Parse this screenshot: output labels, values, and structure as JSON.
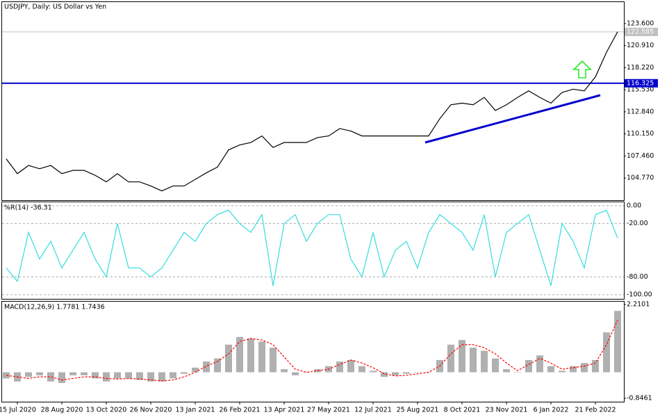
{
  "chart_data": [
    {
      "type": "price",
      "title": "USDJPY, Daily:  US Dollar vs Yen",
      "categories": [
        null,
        "15 Jul 2020",
        null,
        null,
        null,
        "28 Aug 2020",
        null,
        null,
        null,
        "13 Oct 2020",
        null,
        null,
        null,
        "26 Nov 2020",
        null,
        null,
        null,
        "13 Jan 2021",
        null,
        null,
        null,
        "26 Feb 2021",
        null,
        null,
        null,
        "13 Apr 2021",
        null,
        null,
        null,
        "27 May 2021",
        null,
        null,
        null,
        "12 Jul 2021",
        null,
        null,
        null,
        "25 Aug 2021",
        null,
        null,
        null,
        "8 Oct 2021",
        null,
        null,
        null,
        "23 Nov 2021",
        null,
        null,
        null,
        "6 Jan 2022",
        null,
        null,
        null,
        "21 Feb 2022",
        null,
        null
      ],
      "values": [
        107.1,
        105.3,
        106.3,
        105.9,
        106.3,
        105.3,
        105.7,
        105.7,
        105.1,
        104.3,
        105.3,
        104.3,
        104.3,
        103.8,
        103.2,
        103.8,
        103.8,
        104.6,
        105.4,
        106.1,
        108.2,
        108.8,
        109.1,
        109.9,
        108.5,
        109.1,
        109.1,
        109.1,
        109.7,
        109.9,
        110.8,
        110.5,
        109.9,
        109.9,
        109.9,
        109.9,
        109.9,
        109.9,
        109.9,
        112.0,
        113.7,
        113.9,
        113.7,
        114.6,
        113.0,
        113.7,
        114.6,
        115.4,
        114.6,
        113.9,
        115.2,
        115.6,
        115.4,
        117.1,
        120.1,
        122.6
      ],
      "color": "#000000",
      "ylim": [
        102.07,
        126.22
      ],
      "yticks": [
        {
          "value": 104.77,
          "label": "104.770"
        },
        {
          "value": 107.46,
          "label": "107.460"
        },
        {
          "value": 110.15,
          "label": "110.150"
        },
        {
          "value": 112.84,
          "label": "112.840"
        },
        {
          "value": 115.53,
          "label": "115.530"
        },
        {
          "value": 118.22,
          "label": "118.220"
        },
        {
          "value": 120.91,
          "label": "120.910"
        },
        {
          "value": 123.6,
          "label": "123.600"
        }
      ],
      "hline": {
        "value": 116.325,
        "label": "116.325",
        "color": "#0000cc"
      },
      "last_price": {
        "value": 122.585,
        "label": "122.585",
        "color": "#c0c0c0"
      }
    },
    {
      "type": "oscillator",
      "title": "%R(14) -36.31",
      "values": [
        -70,
        -85,
        -30,
        -60,
        -40,
        -70,
        -50,
        -30,
        -60,
        -80,
        -20,
        -70,
        -70,
        -80,
        -70,
        -50,
        -30,
        -40,
        -20,
        -10,
        -5,
        -20,
        -30,
        -10,
        -90,
        -20,
        -10,
        -40,
        -20,
        -10,
        -10,
        -60,
        -80,
        -30,
        -80,
        -50,
        -40,
        -70,
        -30,
        -10,
        -20,
        -30,
        -50,
        -10,
        -80,
        -30,
        -20,
        -10,
        -50,
        -90,
        -20,
        -40,
        -70,
        -10,
        -5,
        -36.31
      ],
      "color": "#33dddd",
      "ylim": [
        -104.7,
        3.9
      ],
      "yticks": [
        {
          "value": 0,
          "label": "0.00"
        },
        {
          "value": -20,
          "label": "-20.00"
        },
        {
          "value": -80,
          "label": "-80.00"
        },
        {
          "value": -100,
          "label": "-100.00"
        }
      ]
    },
    {
      "type": "macd",
      "title": "MACD(12,26,9) 1.7781 1.7436",
      "values": [
        -0.2,
        -0.3,
        -0.15,
        -0.1,
        -0.3,
        -0.35,
        -0.1,
        -0.1,
        -0.2,
        -0.3,
        -0.2,
        -0.2,
        -0.25,
        -0.3,
        -0.3,
        -0.2,
        -0.05,
        0.15,
        0.35,
        0.45,
        0.9,
        1.15,
        1.1,
        1.0,
        0.8,
        0.1,
        -0.1,
        0.0,
        0.1,
        0.2,
        0.35,
        0.4,
        0.2,
        0.05,
        -0.15,
        -0.1,
        -0.05,
        0.0,
        0.0,
        0.4,
        0.9,
        1.05,
        0.8,
        0.7,
        0.45,
        0.1,
        0.0,
        0.4,
        0.55,
        0.2,
        0.05,
        0.2,
        0.3,
        0.4,
        1.3,
        2.0
      ],
      "signal": [
        -0.1,
        -0.15,
        -0.2,
        -0.15,
        -0.15,
        -0.25,
        -0.2,
        -0.15,
        -0.15,
        -0.2,
        -0.22,
        -0.2,
        -0.22,
        -0.25,
        -0.28,
        -0.25,
        -0.15,
        0.0,
        0.2,
        0.35,
        0.6,
        1.0,
        1.1,
        1.05,
        0.9,
        0.5,
        0.1,
        0.0,
        0.05,
        0.1,
        0.25,
        0.4,
        0.3,
        0.15,
        -0.05,
        -0.12,
        -0.1,
        -0.05,
        0.0,
        0.2,
        0.6,
        0.9,
        0.9,
        0.8,
        0.6,
        0.3,
        0.05,
        0.25,
        0.45,
        0.3,
        0.1,
        0.15,
        0.2,
        0.3,
        0.9,
        1.7
      ],
      "color": "#b0b0b0",
      "signal_color": "#ff0000",
      "ylim": [
        -0.8461,
        2.2101
      ],
      "yticks": [
        -0.8461,
        2.2101
      ]
    }
  ]
}
